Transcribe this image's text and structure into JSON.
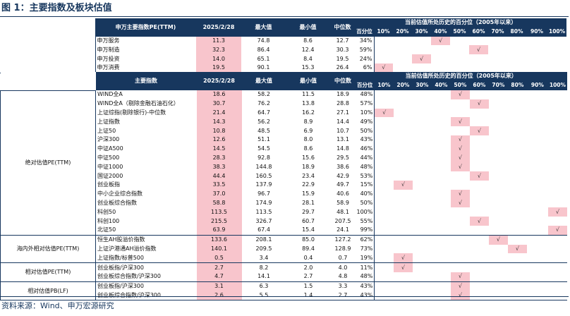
{
  "figure_title": "图 1：主要指数及板块估值",
  "source_note": "资料来源：Wind、申万宏源研究",
  "percentile_group_header": "当前估值所处历史的百分位（2005年以来）",
  "bins": [
    "百分位",
    "10%",
    "20%",
    "30%",
    "40%",
    "50%",
    "60%",
    "70%",
    "80%",
    "90%",
    "100%"
  ],
  "check_symbol": "√",
  "sw_table": {
    "headers": [
      "申万主要指数PE(TTM)",
      "2025/2/28",
      "最大值",
      "最小值",
      "中位数"
    ],
    "rows": [
      {
        "name": "申万服务",
        "cur": "11.3",
        "max": "74.8",
        "min": "8.6",
        "med": "12.7",
        "pct": "34%",
        "bin": 4
      },
      {
        "name": "申万制造",
        "cur": "32.3",
        "max": "86.4",
        "min": "12.4",
        "med": "30.3",
        "pct": "59%",
        "bin": 6
      },
      {
        "name": "申万投资",
        "cur": "14.0",
        "max": "65.1",
        "min": "8.4",
        "med": "19.5",
        "pct": "24%",
        "bin": 3
      },
      {
        "name": "申万消费",
        "cur": "19.5",
        "max": "90.1",
        "min": "15.3",
        "med": "26.4",
        "pct": "6%",
        "bin": 1
      }
    ]
  },
  "main_table": {
    "headers": [
      "主要指数",
      "2025/2/28",
      "最大值",
      "最小值",
      "中位数"
    ],
    "groups": [
      {
        "category": "绝对估值PE(TTM)",
        "rows": [
          {
            "name": "WIND全A",
            "cur": "18.6",
            "max": "58.2",
            "min": "11.5",
            "med": "18.9",
            "pct": "48%",
            "bin": 5
          },
          {
            "name": "WIND全A（剔除金融石油石化）",
            "cur": "30.7",
            "max": "76.2",
            "min": "13.8",
            "med": "28.8",
            "pct": "57%",
            "bin": 6
          },
          {
            "name": "上证综指(剔除银行)-中位数",
            "cur": "21.4",
            "max": "64.7",
            "min": "16.2",
            "med": "27.1",
            "pct": "10%",
            "bin": 1
          },
          {
            "name": "上证指数",
            "cur": "14.3",
            "max": "56.2",
            "min": "8.9",
            "med": "14.4",
            "pct": "49%",
            "bin": 5
          },
          {
            "name": "上证50",
            "cur": "10.8",
            "max": "48.5",
            "min": "6.9",
            "med": "10.7",
            "pct": "50%",
            "bin": 6
          },
          {
            "name": "沪深300",
            "cur": "12.6",
            "max": "51.1",
            "min": "8.0",
            "med": "13.1",
            "pct": "43%",
            "bin": 5
          },
          {
            "name": "中证A500",
            "cur": "14.5",
            "max": "54.5",
            "min": "8.6",
            "med": "14.8",
            "pct": "46%",
            "bin": 5
          },
          {
            "name": "中证500",
            "cur": "28.3",
            "max": "92.8",
            "min": "15.6",
            "med": "29.5",
            "pct": "44%",
            "bin": 5
          },
          {
            "name": "中证1000",
            "cur": "38.3",
            "max": "144.8",
            "min": "18.9",
            "med": "38.6",
            "pct": "48%",
            "bin": 5
          },
          {
            "name": "国证2000",
            "cur": "44.4",
            "max": "160.5",
            "min": "23.4",
            "med": "42.9",
            "pct": "53%",
            "bin": 6
          },
          {
            "name": "创业板指",
            "cur": "33.5",
            "max": "137.9",
            "min": "22.9",
            "med": "49.7",
            "pct": "15%",
            "bin": 2
          },
          {
            "name": "中小企业综合指数",
            "cur": "37.0",
            "max": "96.7",
            "min": "15.9",
            "med": "40.6",
            "pct": "40%",
            "bin": 5
          },
          {
            "name": "创业板综合指数",
            "cur": "58.8",
            "max": "174.9",
            "min": "28.1",
            "med": "58.9",
            "pct": "50%",
            "bin": 5
          },
          {
            "name": "科创50",
            "cur": "113.5",
            "max": "113.5",
            "min": "29.7",
            "med": "48.1",
            "pct": "100%",
            "bin": 10
          },
          {
            "name": "科创100",
            "cur": "215.5",
            "max": "326.7",
            "min": "60.7",
            "med": "207.5",
            "pct": "55%",
            "bin": 6
          },
          {
            "name": "北证50",
            "cur": "63.9",
            "max": "67.4",
            "min": "15.4",
            "med": "24.1",
            "pct": "99%",
            "bin": 10
          }
        ]
      },
      {
        "category": "海内外相对估值PE(TTM)",
        "rows": [
          {
            "name": "恒生AH股溢价指数",
            "cur": "133.6",
            "max": "208.1",
            "min": "85.0",
            "med": "127.2",
            "pct": "62%",
            "bin": 7
          },
          {
            "name": "上证沪港通AH溢价指数",
            "cur": "140.1",
            "max": "209.5",
            "min": "89.4",
            "med": "128.9",
            "pct": "73%",
            "bin": 8
          },
          {
            "name": "上证指数/标普500",
            "cur": "0.5",
            "max": "3.4",
            "min": "0.4",
            "med": "0.7",
            "pct": "19%",
            "bin": 2
          }
        ]
      },
      {
        "category": "相对估值PE(TTM)",
        "rows": [
          {
            "name": "创业板指/沪深300",
            "cur": "2.7",
            "max": "8.2",
            "min": "2.0",
            "med": "4.0",
            "pct": "11%",
            "bin": 2
          },
          {
            "name": "创业板综合指数/沪深300",
            "cur": "4.7",
            "max": "14.1",
            "min": "2.7",
            "med": "4.8",
            "pct": "48%",
            "bin": 5
          }
        ]
      },
      {
        "category": "相对估值PB(LF)",
        "rows": [
          {
            "name": "创业板指/沪深300",
            "cur": "3.1",
            "max": "6.3",
            "min": "1.5",
            "med": "3.3",
            "pct": "43%",
            "bin": 5
          },
          {
            "name": "创业板综合指数/沪深300",
            "cur": "2.6",
            "max": "5.5",
            "min": "1.4",
            "med": "2.7",
            "pct": "43%",
            "bin": 5
          }
        ]
      }
    ]
  }
}
